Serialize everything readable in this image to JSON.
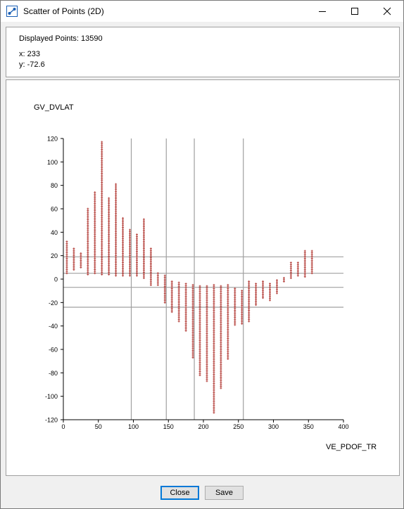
{
  "window": {
    "title": "Scatter of Points (2D)"
  },
  "info": {
    "displayed_points_label": "Displayed Points: 13590",
    "x_readout": "x: 233",
    "y_readout": "y: -72.6"
  },
  "buttons": {
    "close": "Close",
    "save": "Save"
  },
  "colors": {
    "marker": "#b5413c",
    "grid": "#a0a0a0"
  },
  "chart_data": {
    "type": "scatter",
    "xlabel": "VE_PDOF_TR",
    "ylabel": "GV_DVLAT",
    "xlim": [
      0,
      400
    ],
    "ylim": [
      -120,
      120
    ],
    "x_ticks": [
      0,
      50,
      100,
      150,
      200,
      250,
      300,
      350,
      400
    ],
    "y_ticks": [
      120,
      100,
      80,
      60,
      40,
      20,
      0,
      -20,
      -40,
      -60,
      -80,
      -100,
      -120
    ],
    "reference_lines": {
      "vertical": [
        97,
        147,
        187,
        257
      ],
      "horizontal": [
        19,
        5,
        -7,
        -24
      ]
    },
    "columns": [
      {
        "x": 5,
        "min": 5,
        "max": 32
      },
      {
        "x": 15,
        "min": 8,
        "max": 26
      },
      {
        "x": 25,
        "min": 10,
        "max": 22
      },
      {
        "x": 35,
        "min": 4,
        "max": 60
      },
      {
        "x": 45,
        "min": 5,
        "max": 74
      },
      {
        "x": 55,
        "min": 4,
        "max": 117
      },
      {
        "x": 65,
        "min": 4,
        "max": 69
      },
      {
        "x": 75,
        "min": 3,
        "max": 81
      },
      {
        "x": 85,
        "min": 3,
        "max": 52
      },
      {
        "x": 95,
        "min": 3,
        "max": 42
      },
      {
        "x": 105,
        "min": 3,
        "max": 38
      },
      {
        "x": 115,
        "min": 1,
        "max": 51
      },
      {
        "x": 125,
        "min": -5,
        "max": 26
      },
      {
        "x": 135,
        "min": -5,
        "max": 5
      },
      {
        "x": 145,
        "min": -20,
        "max": 3
      },
      {
        "x": 155,
        "min": -28,
        "max": -2
      },
      {
        "x": 165,
        "min": -36,
        "max": -3
      },
      {
        "x": 175,
        "min": -44,
        "max": -4
      },
      {
        "x": 185,
        "min": -67,
        "max": -5
      },
      {
        "x": 195,
        "min": -82,
        "max": -6
      },
      {
        "x": 205,
        "min": -87,
        "max": -6
      },
      {
        "x": 215,
        "min": -114,
        "max": -5
      },
      {
        "x": 225,
        "min": -93,
        "max": -6
      },
      {
        "x": 235,
        "min": -68,
        "max": -5
      },
      {
        "x": 245,
        "min": -39,
        "max": -8
      },
      {
        "x": 255,
        "min": -38,
        "max": -10
      },
      {
        "x": 265,
        "min": -36,
        "max": -2
      },
      {
        "x": 275,
        "min": -22,
        "max": -4
      },
      {
        "x": 285,
        "min": -16,
        "max": -2
      },
      {
        "x": 295,
        "min": -18,
        "max": -4
      },
      {
        "x": 305,
        "min": -12,
        "max": -1
      },
      {
        "x": 315,
        "min": -2,
        "max": 1
      },
      {
        "x": 325,
        "min": 1,
        "max": 14
      },
      {
        "x": 335,
        "min": 3,
        "max": 14
      },
      {
        "x": 345,
        "min": 2,
        "max": 24
      },
      {
        "x": 355,
        "min": 5,
        "max": 24
      }
    ]
  }
}
